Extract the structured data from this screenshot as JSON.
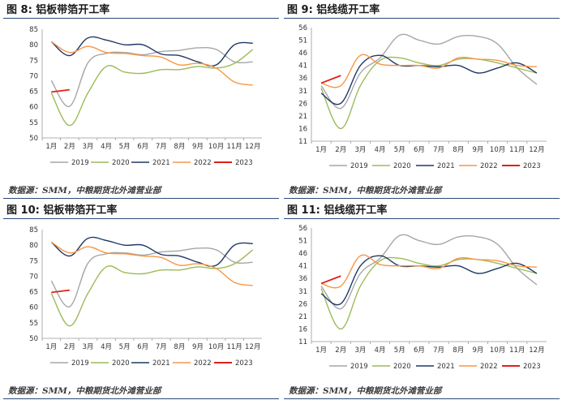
{
  "legend_years": [
    "2019",
    "2020",
    "2021",
    "2022",
    "2023"
  ],
  "colors": {
    "2019": "#a6a6a6",
    "2020": "#9bbb59",
    "2021": "#1f3864",
    "2022": "#f79646",
    "2023": "#e0201b"
  },
  "months": [
    "1月",
    "2月",
    "3月",
    "4月",
    "5月",
    "6月",
    "7月",
    "8月",
    "9月",
    "10月",
    "11月",
    "12月"
  ],
  "panels": [
    {
      "title": "图 8:  铝板带箔开工率",
      "source": "数据源：SMM，中粮期货北外滩营业部",
      "chart_data": {
        "type": "line",
        "ylim": [
          50,
          85
        ],
        "yticks": [
          50,
          55,
          60,
          65,
          70,
          75,
          80,
          85
        ],
        "categories": [
          "1月",
          "2月",
          "3月",
          "4月",
          "5月",
          "6月",
          "7月",
          "8月",
          "9月",
          "10月",
          "11月",
          "12月"
        ],
        "series": [
          {
            "name": "2019",
            "values": [
              68.5,
              60.2,
              74.2,
              77.2,
              77.5,
              76.8,
              77.8,
              78.2,
              79,
              78.5,
              74.5,
              74.5
            ]
          },
          {
            "name": "2020",
            "values": [
              64.5,
              54,
              64.5,
              73,
              71.2,
              70.8,
              72,
              72,
              73,
              72.5,
              74,
              78.5
            ]
          },
          {
            "name": "2021",
            "values": [
              81,
              76.5,
              82.2,
              81.5,
              80,
              80,
              77,
              76.5,
              74.5,
              73.5,
              80,
              80.5
            ]
          },
          {
            "name": "2022",
            "values": [
              81,
              77.5,
              79.5,
              77.5,
              77.2,
              76.5,
              76,
              73.5,
              74,
              72.5,
              68,
              67
            ]
          },
          {
            "name": "2023",
            "values": [
              64.8,
              65.5,
              null,
              null,
              null,
              null,
              null,
              null,
              null,
              null,
              null,
              null
            ]
          }
        ]
      }
    },
    {
      "title": "图 9:  铝线缆开工率",
      "source": "数据源：SMM，中粮期货北外滩营业部",
      "chart_data": {
        "type": "line",
        "ylim": [
          11,
          56
        ],
        "yticks": [
          11,
          16,
          21,
          26,
          31,
          36,
          41,
          46,
          51,
          56
        ],
        "categories": [
          "1月",
          "2月",
          "3月",
          "4月",
          "5月",
          "6月",
          "7月",
          "8月",
          "9月",
          "10月",
          "11月",
          "12月"
        ],
        "series": [
          {
            "name": "2019",
            "values": [
              33,
              24,
              38,
              44,
              53,
              51,
              49.5,
              52.5,
              52.5,
              49.5,
              40,
              33.5
            ]
          },
          {
            "name": "2020",
            "values": [
              32,
              16,
              33,
              43,
              44,
              42,
              41,
              43.5,
              43.5,
              42,
              40,
              38
            ]
          },
          {
            "name": "2021",
            "values": [
              30,
              26,
              41,
              45,
              41,
              41,
              40.5,
              41,
              38,
              40,
              42,
              38
            ]
          },
          {
            "name": "2022",
            "values": [
              34,
              33,
              45,
              41.5,
              41,
              41,
              40,
              44,
              43.5,
              43,
              41,
              40.5
            ]
          },
          {
            "name": "2023",
            "values": [
              34,
              37,
              null,
              null,
              null,
              null,
              null,
              null,
              null,
              null,
              null,
              null
            ]
          }
        ]
      }
    },
    {
      "title": "图 10:  铝板带箔开工率",
      "source": "数据源：SMM，中粮期货北外滩营业部",
      "chart_data": {
        "type": "line",
        "ylim": [
          50,
          85
        ],
        "yticks": [
          50,
          55,
          60,
          65,
          70,
          75,
          80,
          85
        ],
        "categories": [
          "1月",
          "2月",
          "3月",
          "4月",
          "5月",
          "6月",
          "7月",
          "8月",
          "9月",
          "10月",
          "11月",
          "12月"
        ],
        "series": [
          {
            "name": "2019",
            "values": [
              68.5,
              60.2,
              74.2,
              77.2,
              77.5,
              76.8,
              77.8,
              78.2,
              79,
              78.5,
              74.5,
              74.5
            ]
          },
          {
            "name": "2020",
            "values": [
              64.5,
              54,
              64.5,
              73,
              71.2,
              70.8,
              72,
              72,
              73,
              72.5,
              74,
              78.5
            ]
          },
          {
            "name": "2021",
            "values": [
              81,
              76.5,
              82.2,
              81.5,
              80,
              80,
              77,
              76.5,
              74.5,
              73.5,
              80,
              80.5
            ]
          },
          {
            "name": "2022",
            "values": [
              81,
              77.5,
              79.5,
              77.5,
              77.2,
              76.5,
              76,
              73.5,
              74,
              72.5,
              68,
              67
            ]
          },
          {
            "name": "2023",
            "values": [
              64.8,
              65.5,
              null,
              null,
              null,
              null,
              null,
              null,
              null,
              null,
              null,
              null
            ]
          }
        ]
      }
    },
    {
      "title": "图 11:  铝线缆开工率",
      "source": "数据源：SMM，中粮期货北外滩营业部",
      "chart_data": {
        "type": "line",
        "ylim": [
          11,
          56
        ],
        "yticks": [
          11,
          16,
          21,
          26,
          31,
          36,
          41,
          46,
          51,
          56
        ],
        "categories": [
          "1月",
          "2月",
          "3月",
          "4月",
          "5月",
          "6月",
          "7月",
          "8月",
          "9月",
          "10月",
          "11月",
          "12月"
        ],
        "series": [
          {
            "name": "2019",
            "values": [
              33,
              24,
              38,
              44,
              53,
              51,
              49.5,
              52.5,
              52.5,
              49.5,
              40,
              33.5
            ]
          },
          {
            "name": "2020",
            "values": [
              32,
              16,
              33,
              43,
              44,
              42,
              41,
              43.5,
              43.5,
              42,
              40,
              38
            ]
          },
          {
            "name": "2021",
            "values": [
              30,
              26,
              41,
              45,
              41,
              41,
              40.5,
              41,
              38,
              40,
              42,
              38
            ]
          },
          {
            "name": "2022",
            "values": [
              34,
              33,
              45,
              41.5,
              41,
              41,
              40,
              44,
              43.5,
              43,
              41,
              40.5
            ]
          },
          {
            "name": "2023",
            "values": [
              34,
              37,
              null,
              null,
              null,
              null,
              null,
              null,
              null,
              null,
              null,
              null
            ]
          }
        ]
      }
    }
  ]
}
